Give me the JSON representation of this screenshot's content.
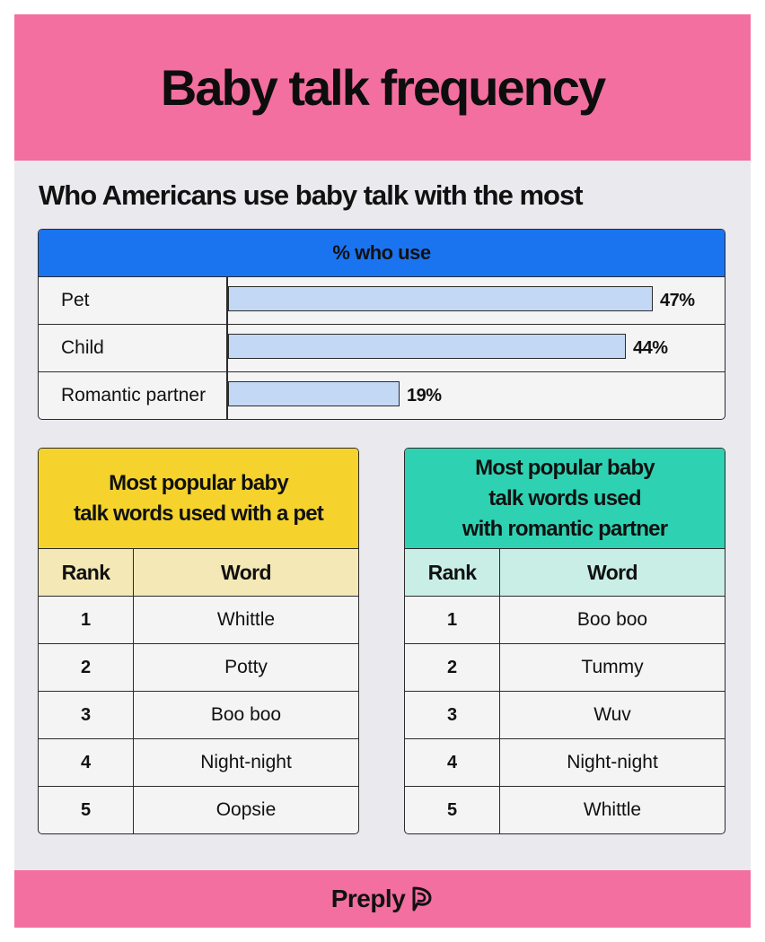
{
  "header": {
    "title": "Baby talk frequency"
  },
  "subtitle": "Who Americans use baby talk with the most",
  "colors": {
    "header_bg": "#f36f9f",
    "bar_header_bg": "#1a74f0",
    "bar_fill": "#c3d8f5",
    "pet_header": "#f5d32c",
    "pet_subheader": "#f3e8b6",
    "partner_header": "#2ed2b2",
    "partner_subheader": "#c9eee5"
  },
  "chart_data": {
    "type": "bar",
    "header": "% who use",
    "categories": [
      "Pet",
      "Child",
      "Romantic partner"
    ],
    "values": [
      47,
      44,
      19
    ],
    "value_labels": [
      "47%",
      "44%",
      "19%"
    ],
    "xlim": [
      0,
      47
    ]
  },
  "pet_table": {
    "title_lines": [
      "Most popular baby",
      "talk words used with a pet"
    ],
    "columns": [
      "Rank",
      "Word"
    ],
    "rows": [
      {
        "rank": "1",
        "word": "Whittle"
      },
      {
        "rank": "2",
        "word": "Potty"
      },
      {
        "rank": "3",
        "word": "Boo boo"
      },
      {
        "rank": "4",
        "word": "Night-night"
      },
      {
        "rank": "5",
        "word": "Oopsie"
      }
    ]
  },
  "partner_table": {
    "title_lines": [
      "Most popular baby",
      "talk words used",
      "with romantic partner"
    ],
    "columns": [
      "Rank",
      "Word"
    ],
    "rows": [
      {
        "rank": "1",
        "word": "Boo boo"
      },
      {
        "rank": "2",
        "word": "Tummy"
      },
      {
        "rank": "3",
        "word": "Wuv"
      },
      {
        "rank": "4",
        "word": "Night-night"
      },
      {
        "rank": "5",
        "word": "Whittle"
      }
    ]
  },
  "footer": {
    "brand": "Preply",
    "logo_icon": "preply-logo-icon"
  }
}
